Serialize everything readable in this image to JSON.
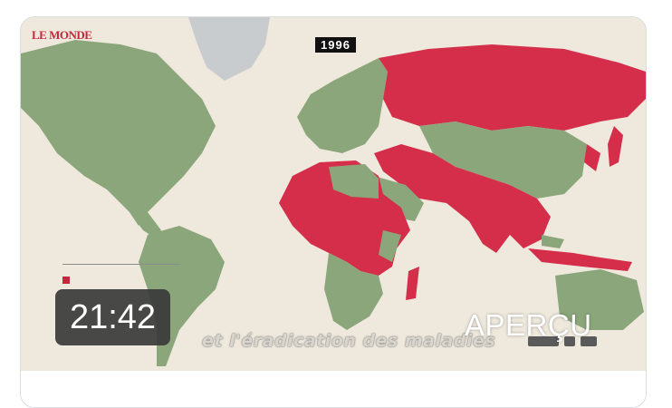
{
  "video": {
    "logo_text": "LE MONDE",
    "year": "1996",
    "subtitle": "et l'éradication des maladies",
    "duration": "21:42",
    "preview_label": "APERÇU"
  },
  "colors": {
    "land_green": "#8aa67a",
    "polio_red": "#d42e4a",
    "background": "#efe9dd",
    "greenland": "#c9cccf"
  }
}
